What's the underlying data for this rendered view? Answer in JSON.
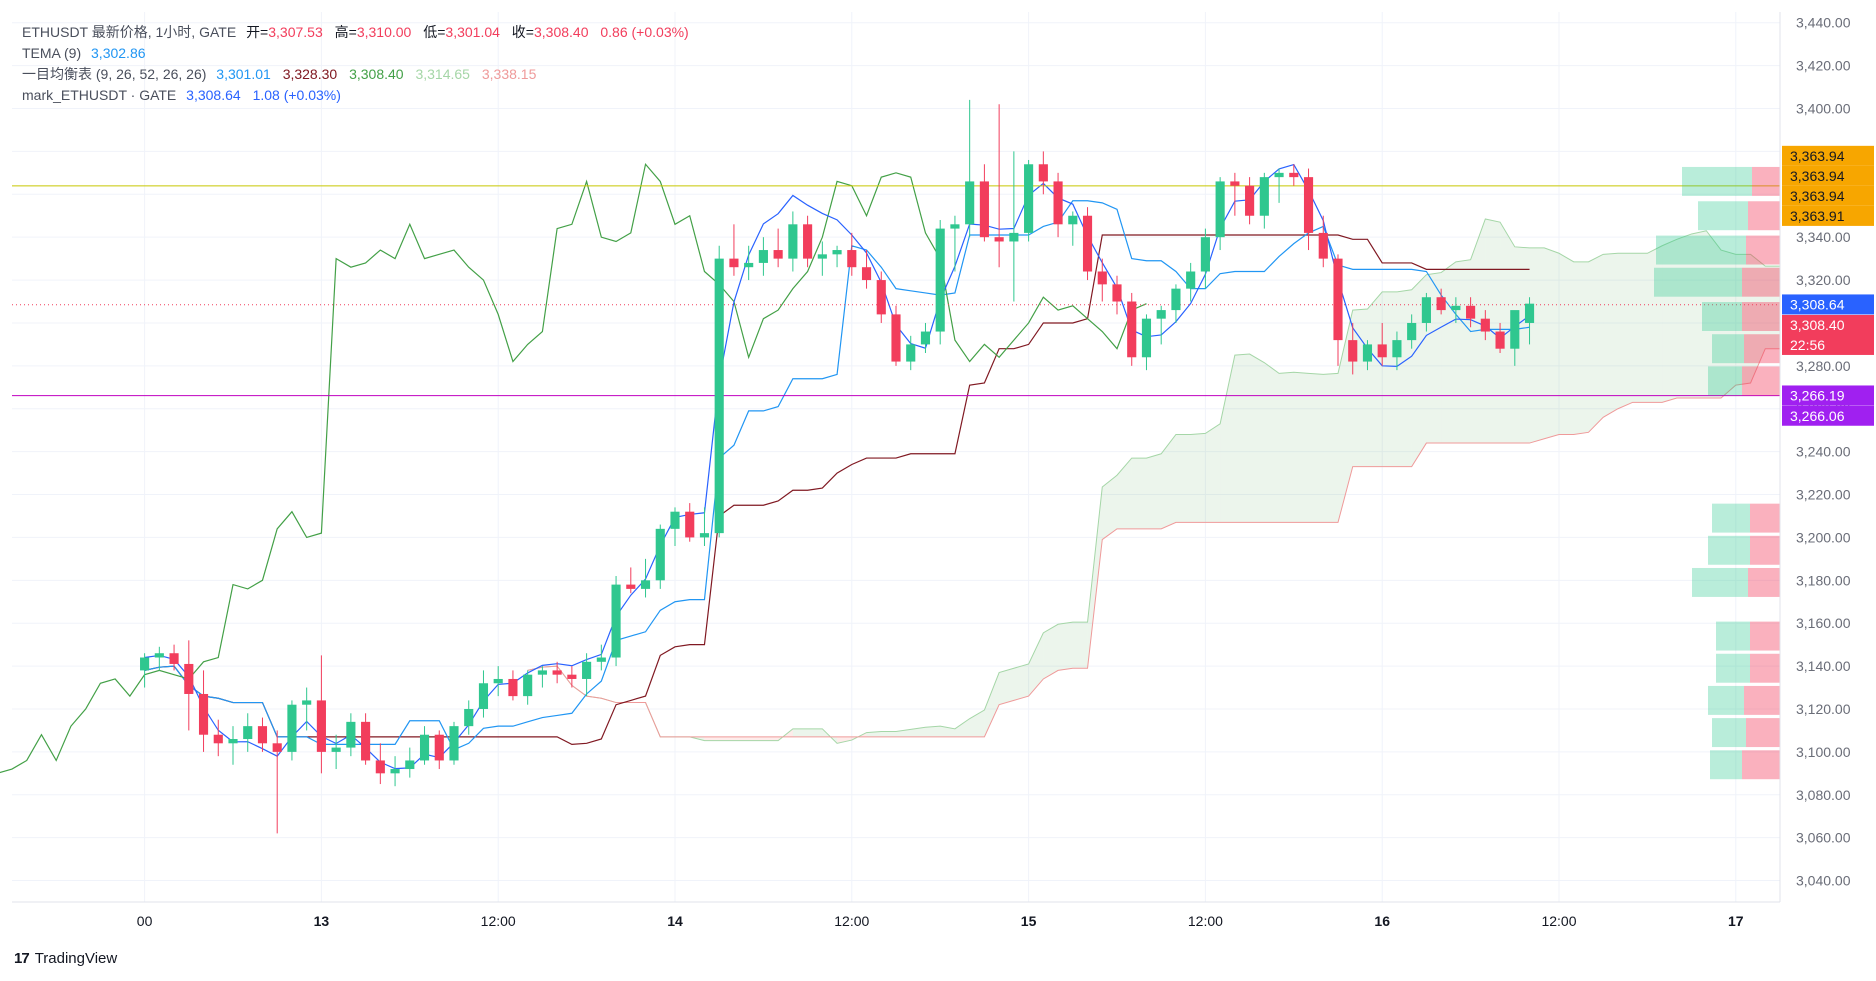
{
  "legend": {
    "symbol_line": "ETHUSDT 最新价格, 1小时, GATE",
    "o_label": "开=",
    "o_val": "3,307.53",
    "h_label": "高=",
    "h_val": "3,310.00",
    "l_label": "低=",
    "l_val": "3,301.04",
    "c_label": "收=",
    "c_val": "3,308.40",
    "change": "0.86 (+0.03%)",
    "tema_label": "TEMA (9)",
    "tema_val": "3,302.86",
    "ichi_label": "一目均衡表 (9, 26, 52, 26, 26)",
    "ichi_vals": [
      "3,301.01",
      "3,328.30",
      "3,308.40",
      "3,314.65",
      "3,338.15"
    ],
    "mark_label": "mark_ETHUSDT · GATE",
    "mark_val": "3,308.64",
    "mark_change": "1.08 (+0.03%)"
  },
  "colors": {
    "up": "#26a69a",
    "up_fill": "#2fc78f",
    "down": "#f23d5c",
    "tema": "#2962ff",
    "tenkan": "#2196f3",
    "kijun": "#801922",
    "chikou": "#43a047",
    "spanA": "#a5d6a7",
    "spanB": "#ef9a9a",
    "level_gold": "#c8c800",
    "level_purple": "#c000c0",
    "badge_gold": "#f7a600",
    "badge_blue": "#2962ff",
    "badge_red": "#f23d5c",
    "badge_purple": "#a020f0"
  },
  "price_badges": [
    {
      "price": 3363.94,
      "text": "3,363.94",
      "color": "badge_gold"
    },
    {
      "price": 3363.94,
      "text": "3,363.94",
      "color": "badge_gold"
    },
    {
      "price": 3363.94,
      "text": "3,363.94",
      "color": "badge_gold"
    },
    {
      "price": 3363.91,
      "text": "3,363.91",
      "color": "badge_gold"
    },
    {
      "price": 3308.64,
      "text": "3,308.64",
      "color": "badge_blue"
    },
    {
      "price": 3308.4,
      "text": "3,308.40",
      "sub": "22:56",
      "color": "badge_red"
    },
    {
      "price": 3266.19,
      "text": "3,266.19",
      "color": "badge_purple"
    },
    {
      "price": 3266.06,
      "text": "3,266.06",
      "color": "badge_purple"
    }
  ],
  "footer": {
    "brand": "TradingView",
    "logo": "17"
  },
  "chart_data": {
    "type": "candlestick",
    "y_axis": {
      "min": 3030,
      "max": 3445,
      "ticks": [
        3040,
        3060,
        3080,
        3100,
        3120,
        3140,
        3160,
        3180,
        3200,
        3220,
        3240,
        3260,
        3280,
        3300,
        3320,
        3340,
        3360,
        3380,
        3400,
        3420,
        3440
      ],
      "tick_labels": [
        "3,040.00",
        "3,060.00",
        "3,080.00",
        "3,100.00",
        "3,120.00",
        "3,140.00",
        "3,160.00",
        "3,180.00",
        "3,200.00",
        "3,220.00",
        "3,240.00",
        "3,260.00",
        "3,280.00",
        "3,300.00",
        "3,320.00",
        "3,340.00",
        "3,360.00",
        "3,380.00",
        "3,400.00",
        "3,420.00",
        "3,440.00"
      ]
    },
    "x_axis": {
      "start_hour": -9,
      "end_hour": 111,
      "ticks": [
        {
          "hour": 0,
          "label": "00",
          "bold": false
        },
        {
          "hour": 12,
          "label": "13",
          "bold": true
        },
        {
          "hour": 24,
          "label": "12:00",
          "bold": false
        },
        {
          "hour": 36,
          "label": "14",
          "bold": true
        },
        {
          "hour": 48,
          "label": "12:00",
          "bold": false
        },
        {
          "hour": 60,
          "label": "15",
          "bold": true
        },
        {
          "hour": 72,
          "label": "12:00",
          "bold": false
        },
        {
          "hour": 84,
          "label": "16",
          "bold": true
        },
        {
          "hour": 96,
          "label": "12:00",
          "bold": false
        },
        {
          "hour": 108,
          "label": "17",
          "bold": true
        },
        {
          "hour": 120,
          "label": "12:00",
          "bold": false
        }
      ]
    },
    "levels": [
      {
        "price": 3363.9,
        "color": "level_gold",
        "style": "solid"
      },
      {
        "price": 3266.1,
        "color": "level_purple",
        "style": "solid"
      },
      {
        "price": 3308.5,
        "color": "badge_red",
        "style": "dotted"
      }
    ],
    "candles": [
      [
        3138,
        3146,
        3130,
        3144
      ],
      [
        3144,
        3149,
        3138,
        3146
      ],
      [
        3146,
        3150,
        3138,
        3141
      ],
      [
        3141,
        3152,
        3110,
        3127
      ],
      [
        3127,
        3138,
        3100,
        3108
      ],
      [
        3108,
        3115,
        3098,
        3104
      ],
      [
        3104,
        3112,
        3094,
        3106
      ],
      [
        3106,
        3118,
        3100,
        3112
      ],
      [
        3112,
        3116,
        3100,
        3104
      ],
      [
        3104,
        3110,
        3062,
        3100
      ],
      [
        3100,
        3124,
        3096,
        3122
      ],
      [
        3122,
        3130,
        3110,
        3124
      ],
      [
        3124,
        3145,
        3090,
        3100
      ],
      [
        3100,
        3108,
        3092,
        3102
      ],
      [
        3102,
        3118,
        3098,
        3114
      ],
      [
        3114,
        3118,
        3094,
        3096
      ],
      [
        3096,
        3104,
        3085,
        3090
      ],
      [
        3090,
        3098,
        3084,
        3092
      ],
      [
        3092,
        3102,
        3088,
        3096
      ],
      [
        3096,
        3112,
        3094,
        3108
      ],
      [
        3108,
        3110,
        3092,
        3096
      ],
      [
        3096,
        3114,
        3094,
        3112
      ],
      [
        3112,
        3124,
        3108,
        3120
      ],
      [
        3120,
        3138,
        3116,
        3132
      ],
      [
        3132,
        3140,
        3126,
        3134
      ],
      [
        3134,
        3138,
        3124,
        3126
      ],
      [
        3126,
        3138,
        3122,
        3136
      ],
      [
        3136,
        3140,
        3130,
        3138
      ],
      [
        3138,
        3142,
        3132,
        3136
      ],
      [
        3136,
        3140,
        3130,
        3134
      ],
      [
        3134,
        3146,
        3126,
        3142
      ],
      [
        3142,
        3150,
        3138,
        3144
      ],
      [
        3144,
        3182,
        3140,
        3178
      ],
      [
        3178,
        3186,
        3174,
        3176
      ],
      [
        3176,
        3190,
        3172,
        3180
      ],
      [
        3180,
        3206,
        3176,
        3204
      ],
      [
        3204,
        3214,
        3196,
        3212
      ],
      [
        3212,
        3216,
        3198,
        3200
      ],
      [
        3200,
        3214,
        3196,
        3202
      ],
      [
        3202,
        3336,
        3200,
        3330
      ],
      [
        3330,
        3346,
        3322,
        3326
      ],
      [
        3326,
        3336,
        3320,
        3328
      ],
      [
        3328,
        3340,
        3322,
        3334
      ],
      [
        3334,
        3344,
        3326,
        3330
      ],
      [
        3330,
        3352,
        3324,
        3346
      ],
      [
        3346,
        3350,
        3326,
        3330
      ],
      [
        3330,
        3338,
        3322,
        3332
      ],
      [
        3332,
        3336,
        3326,
        3334
      ],
      [
        3334,
        3342,
        3322,
        3326
      ],
      [
        3326,
        3334,
        3316,
        3320
      ],
      [
        3320,
        3324,
        3300,
        3304
      ],
      [
        3304,
        3308,
        3280,
        3282
      ],
      [
        3282,
        3294,
        3278,
        3290
      ],
      [
        3290,
        3300,
        3286,
        3296
      ],
      [
        3296,
        3348,
        3290,
        3344
      ],
      [
        3344,
        3350,
        3324,
        3346
      ],
      [
        3346,
        3404,
        3340,
        3366
      ],
      [
        3366,
        3374,
        3338,
        3340
      ],
      [
        3340,
        3402,
        3326,
        3338
      ],
      [
        3338,
        3380,
        3310,
        3342
      ],
      [
        3342,
        3376,
        3338,
        3374
      ],
      [
        3374,
        3380,
        3360,
        3366
      ],
      [
        3366,
        3370,
        3340,
        3346
      ],
      [
        3346,
        3352,
        3336,
        3350
      ],
      [
        3350,
        3354,
        3320,
        3324
      ],
      [
        3324,
        3330,
        3310,
        3318
      ],
      [
        3318,
        3322,
        3304,
        3310
      ],
      [
        3310,
        3314,
        3280,
        3284
      ],
      [
        3284,
        3304,
        3278,
        3302
      ],
      [
        3302,
        3308,
        3290,
        3306
      ],
      [
        3306,
        3318,
        3300,
        3316
      ],
      [
        3316,
        3328,
        3310,
        3324
      ],
      [
        3324,
        3344,
        3316,
        3340
      ],
      [
        3340,
        3368,
        3334,
        3366
      ],
      [
        3366,
        3370,
        3350,
        3364
      ],
      [
        3364,
        3368,
        3346,
        3350
      ],
      [
        3350,
        3370,
        3344,
        3368
      ],
      [
        3368,
        3372,
        3356,
        3370
      ],
      [
        3370,
        3374,
        3364,
        3368
      ],
      [
        3368,
        3372,
        3334,
        3342
      ],
      [
        3342,
        3350,
        3326,
        3330
      ],
      [
        3330,
        3332,
        3280,
        3292
      ],
      [
        3292,
        3300,
        3276,
        3282
      ],
      [
        3282,
        3292,
        3278,
        3290
      ],
      [
        3290,
        3300,
        3280,
        3284
      ],
      [
        3284,
        3296,
        3278,
        3292
      ],
      [
        3292,
        3304,
        3288,
        3300
      ],
      [
        3300,
        3314,
        3296,
        3312
      ],
      [
        3312,
        3316,
        3304,
        3306
      ],
      [
        3306,
        3312,
        3300,
        3308
      ],
      [
        3308,
        3312,
        3298,
        3302
      ],
      [
        3302,
        3306,
        3292,
        3296
      ],
      [
        3296,
        3300,
        3286,
        3288
      ],
      [
        3288,
        3302,
        3280,
        3306
      ],
      [
        3300,
        3312,
        3290,
        3309
      ]
    ],
    "volume_profile": [
      {
        "price": 3366,
        "up": 70,
        "down": 30
      },
      {
        "price": 3350,
        "up": 50,
        "down": 34
      },
      {
        "price": 3334,
        "up": 90,
        "down": 36
      },
      {
        "price": 3319,
        "up": 88,
        "down": 40
      },
      {
        "price": 3303,
        "up": 40,
        "down": 40
      },
      {
        "price": 3288,
        "up": 32,
        "down": 38
      },
      {
        "price": 3273,
        "up": 34,
        "down": 40
      },
      {
        "price": 3209,
        "up": 38,
        "down": 32
      },
      {
        "price": 3194,
        "up": 42,
        "down": 32
      },
      {
        "price": 3179,
        "up": 56,
        "down": 34
      },
      {
        "price": 3154,
        "up": 34,
        "down": 32
      },
      {
        "price": 3139,
        "up": 34,
        "down": 32
      },
      {
        "price": 3124,
        "up": 36,
        "down": 38
      },
      {
        "price": 3109,
        "up": 34,
        "down": 36
      },
      {
        "price": 3094,
        "up": 32,
        "down": 40
      }
    ]
  }
}
